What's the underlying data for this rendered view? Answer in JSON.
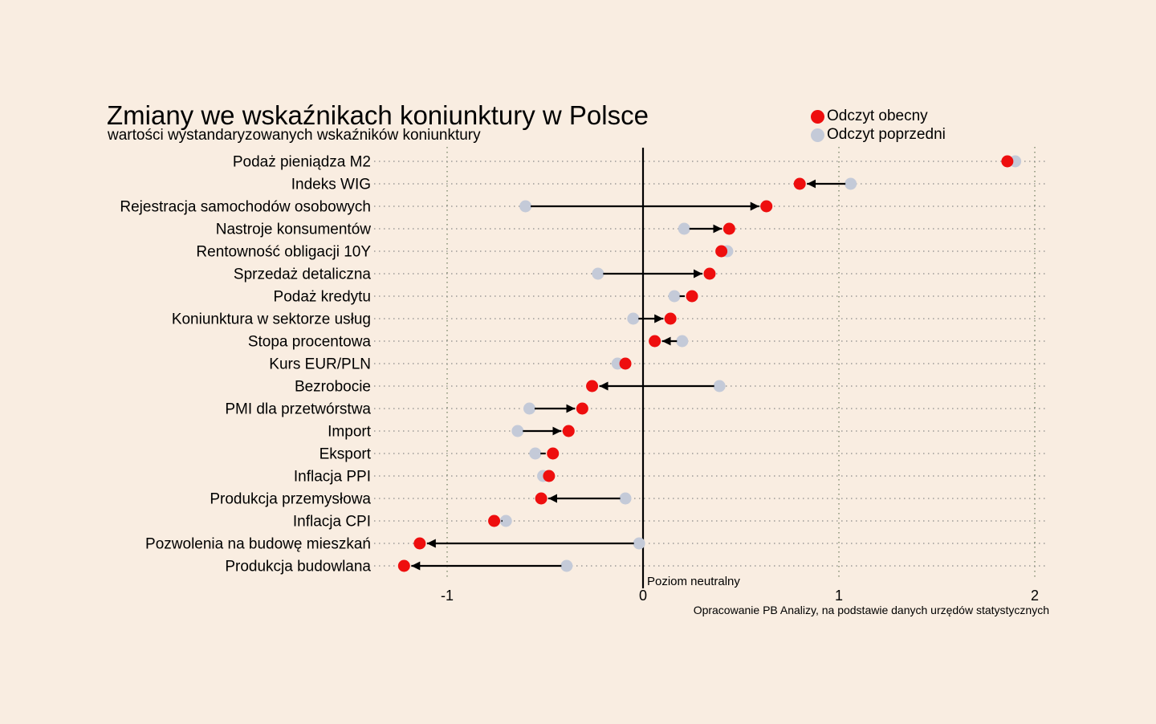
{
  "chart_data": {
    "type": "dumbbell",
    "title": "Zmiany we wskaźnikach koniunktury w Polsce",
    "subtitle": "wartości wystandaryzowanych wskaźników koniunktury",
    "source": "Opracowanie PB Analizy, na podstawie danych urzędów statystycznych",
    "neutral_label": "Poziom neutralny",
    "legend_position": "top-right",
    "xlim": [
      -1.0,
      2.0
    ],
    "x_ticks": [
      "-1",
      "0",
      "1",
      "2"
    ],
    "x_tick_values": [
      -1,
      0,
      1,
      2
    ],
    "grid": "vertical dotted",
    "colors": {
      "current": "#ee0e0e",
      "previous": "#c4cad8",
      "background": "#f9ede1",
      "arrow": "#000000"
    },
    "series": [
      {
        "name": "Odczyt obecny",
        "key": "current"
      },
      {
        "name": "Odczyt poprzedni",
        "key": "previous"
      }
    ],
    "categories": [
      "Podaż pieniądza M2",
      "Indeks WIG",
      "Rejestracja samochodów osobowych",
      "Nastroje konsumentów",
      "Rentowność obligacji 10Y",
      "Sprzedaż detaliczna",
      "Podaż kredytu",
      "Koniunktura w sektorze usług",
      "Stopa procentowa",
      "Kurs EUR/PLN",
      "Bezrobocie",
      "PMI dla przetwórstwa",
      "Import",
      "Eksport",
      "Inflacja PPI",
      "Produkcja przemysłowa",
      "Inflacja CPI",
      "Pozwolenia na budowę mieszkań",
      "Produkcja budowlana"
    ],
    "current": [
      1.86,
      0.8,
      0.63,
      0.44,
      0.4,
      0.34,
      0.25,
      0.14,
      0.06,
      -0.09,
      -0.26,
      -0.31,
      -0.38,
      -0.46,
      -0.48,
      -0.52,
      -0.76,
      -1.14,
      -1.22
    ],
    "previous": [
      1.9,
      1.06,
      -0.6,
      0.21,
      0.43,
      -0.23,
      0.16,
      -0.05,
      0.2,
      -0.13,
      0.39,
      -0.58,
      -0.64,
      -0.55,
      -0.51,
      -0.09,
      -0.7,
      -0.02,
      -0.39
    ]
  }
}
